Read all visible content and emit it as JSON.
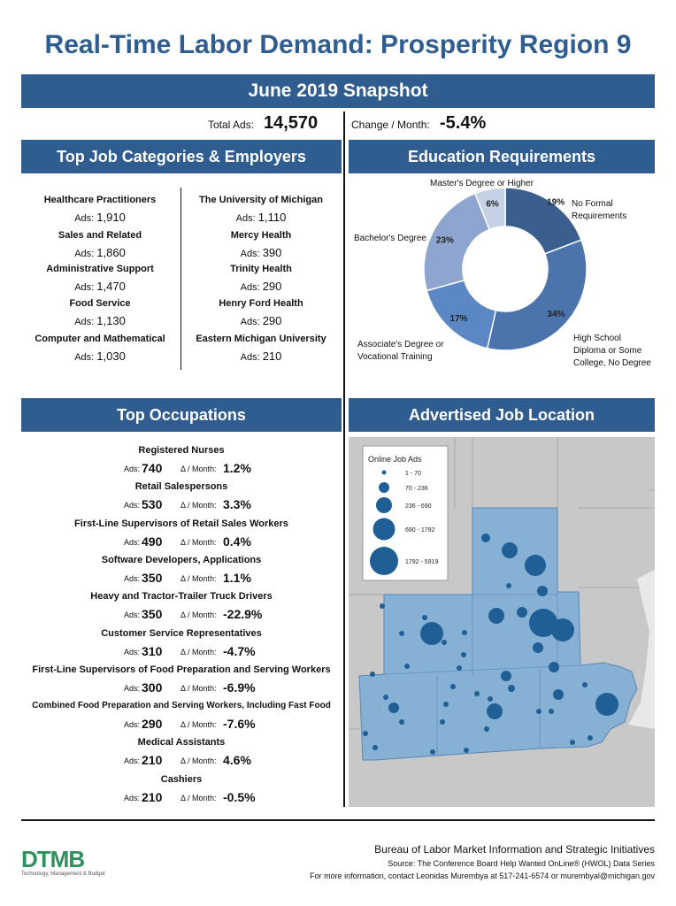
{
  "title": "Real-Time Labor Demand: Prosperity Region 9",
  "snapshot_label": "June 2019 Snapshot",
  "totals": {
    "total_ads_label": "Total Ads:",
    "total_ads_value": "14,570",
    "change_label": "Change / Month:",
    "change_value": "-5.4%"
  },
  "sections": {
    "top_jobs": "Top Job Categories & Employers",
    "education": "Education Requirements",
    "top_occupations": "Top Occupations",
    "job_location": "Advertised Job Location"
  },
  "ads_label": "Ads:",
  "delta_label": "Δ / Month:",
  "categories": [
    {
      "name": "Healthcare Practitioners",
      "ads": "1,910"
    },
    {
      "name": "Sales and Related",
      "ads": "1,860"
    },
    {
      "name": "Administrative Support",
      "ads": "1,470"
    },
    {
      "name": "Food Service",
      "ads": "1,130"
    },
    {
      "name": "Computer and Mathematical",
      "ads": "1,030"
    }
  ],
  "employers": [
    {
      "name": "The University of Michigan",
      "ads": "1,110"
    },
    {
      "name": "Mercy Health",
      "ads": "390"
    },
    {
      "name": "Trinity Health",
      "ads": "290"
    },
    {
      "name": "Henry Ford Health",
      "ads": "290"
    },
    {
      "name": "Eastern Michigan University",
      "ads": "210"
    }
  ],
  "education_labels": {
    "masters": "Master's Degree or Higher",
    "no_formal": "No Formal Requirements",
    "bachelors": "Bachelor's Degree",
    "associates": "Associate's Degree or Vocational Training",
    "high_school": "High School Diploma or Some College, No Degree"
  },
  "chart_data": {
    "type": "pie",
    "categories": [
      "No Formal Requirements",
      "High School Diploma or Some College, No Degree",
      "Associate's Degree or Vocational Training",
      "Bachelor's Degree",
      "Master's Degree or Higher"
    ],
    "values": [
      19,
      34,
      17,
      23,
      6
    ],
    "labels": [
      "19%",
      "34%",
      "17%",
      "23%",
      "6%"
    ],
    "colors": [
      "#3a5f8f",
      "#4a74ab",
      "#5b87c5",
      "#8ea6cf",
      "#c4d1e6"
    ]
  },
  "occupations": [
    {
      "name": "Registered Nurses",
      "ads": "740",
      "change": "1.2%"
    },
    {
      "name": "Retail Salespersons",
      "ads": "530",
      "change": "3.3%"
    },
    {
      "name": "First-Line Supervisors of Retail Sales Workers",
      "ads": "490",
      "change": "0.4%"
    },
    {
      "name": "Software Developers, Applications",
      "ads": "350",
      "change": "1.1%"
    },
    {
      "name": "Heavy and Tractor-Trailer Truck Drivers",
      "ads": "350",
      "change": "-22.9%"
    },
    {
      "name": "Customer Service Representatives",
      "ads": "310",
      "change": "-4.7%"
    },
    {
      "name": "First-Line Supervisors of Food Preparation and Serving Workers",
      "ads": "300",
      "change": "-6.9%"
    },
    {
      "name": "Combined Food Preparation and Serving Workers, Including Fast Food",
      "ads": "290",
      "change": "-7.6%"
    },
    {
      "name": "Medical Assistants",
      "ads": "210",
      "change": "4.6%"
    },
    {
      "name": "Cashiers",
      "ads": "210",
      "change": "-0.5%"
    }
  ],
  "map_legend": {
    "title": "Online Job Ads",
    "ranges": [
      "1 - 70",
      "70 - 236",
      "236 - 690",
      "690 - 1792",
      "1792 - 5919"
    ]
  },
  "footer": {
    "logo_text": "DTMB",
    "logo_sub": "Technology, Management & Budget",
    "line1": "Bureau of Labor Market Information and Strategic Initiatives",
    "line2": "Source: The Conference Board Help Wanted OnLine® (HWOL) Data Series",
    "line3": "For more information, contact Leonidas Murembya at 517-241-6574 or murembyal@michigan.gov"
  }
}
